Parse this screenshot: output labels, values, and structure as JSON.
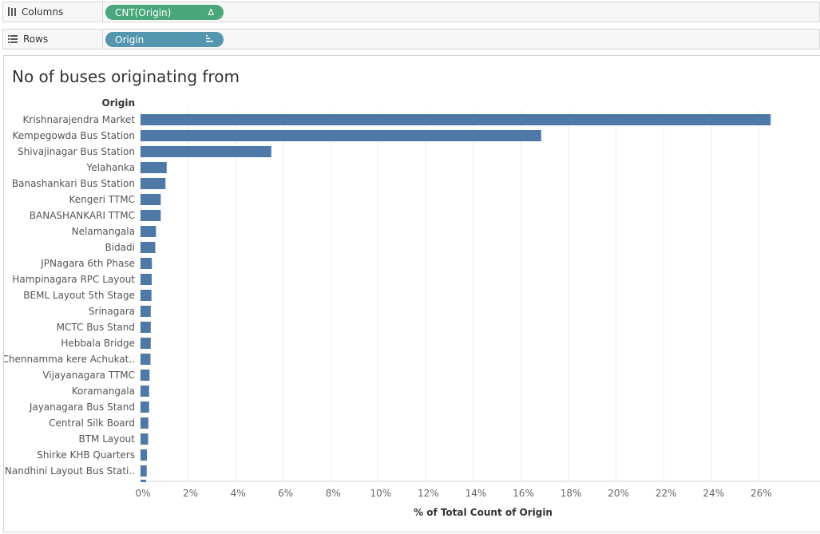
{
  "shelves": {
    "columns": {
      "label": "Columns",
      "pill": "CNT(Origin)",
      "pill_icon": "Δ",
      "icon": "columns-icon",
      "color": "#4aa77b"
    },
    "rows": {
      "label": "Rows",
      "pill": "Origin",
      "pill_icon": "sort-descending-icon",
      "icon": "rows-icon",
      "color": "#5396ad"
    }
  },
  "bar_color": "#4e79a7",
  "chart_data": {
    "type": "bar",
    "orientation": "horizontal",
    "title": "No of buses originating from",
    "row_header": "Origin",
    "xlabel": "% of Total Count of Origin",
    "categories": [
      "Krishnarajendra Market",
      "Kempegowda Bus Station",
      "Shivajinagar Bus Station",
      "Yelahanka",
      "Banashankari Bus Station",
      "Kengeri TTMC",
      "BANASHANKARI TTMC",
      "Nelamangala",
      "Bidadi",
      "JPNagara 6th Phase",
      "Hampinagara RPC Layout",
      "BEML Layout 5th Stage",
      "Srinagara",
      "MCTC Bus Stand",
      "Hebbala Bridge",
      "Chennamma kere Achukat..",
      "Vijayanagara TTMC",
      "Koramangala",
      "Jayanagara Bus Stand",
      "Central Silk Board",
      "BTM Layout",
      "Shirke KHB Quarters",
      "Nandhini Layout Bus Stati.."
    ],
    "values": [
      26.5,
      16.85,
      5.5,
      1.1,
      1.05,
      0.85,
      0.85,
      0.65,
      0.62,
      0.48,
      0.47,
      0.46,
      0.43,
      0.43,
      0.43,
      0.42,
      0.38,
      0.36,
      0.36,
      0.33,
      0.32,
      0.27,
      0.26
    ],
    "xlim": [
      0,
      27.5
    ],
    "xticks": [
      0,
      2,
      4,
      6,
      8,
      10,
      12,
      14,
      16,
      18,
      20,
      22,
      24,
      26
    ],
    "xtick_labels": [
      "0%",
      "2%",
      "4%",
      "6%",
      "8%",
      "10%",
      "12%",
      "14%",
      "16%",
      "18%",
      "20%",
      "22%",
      "24%",
      "26%"
    ],
    "grid": true
  }
}
